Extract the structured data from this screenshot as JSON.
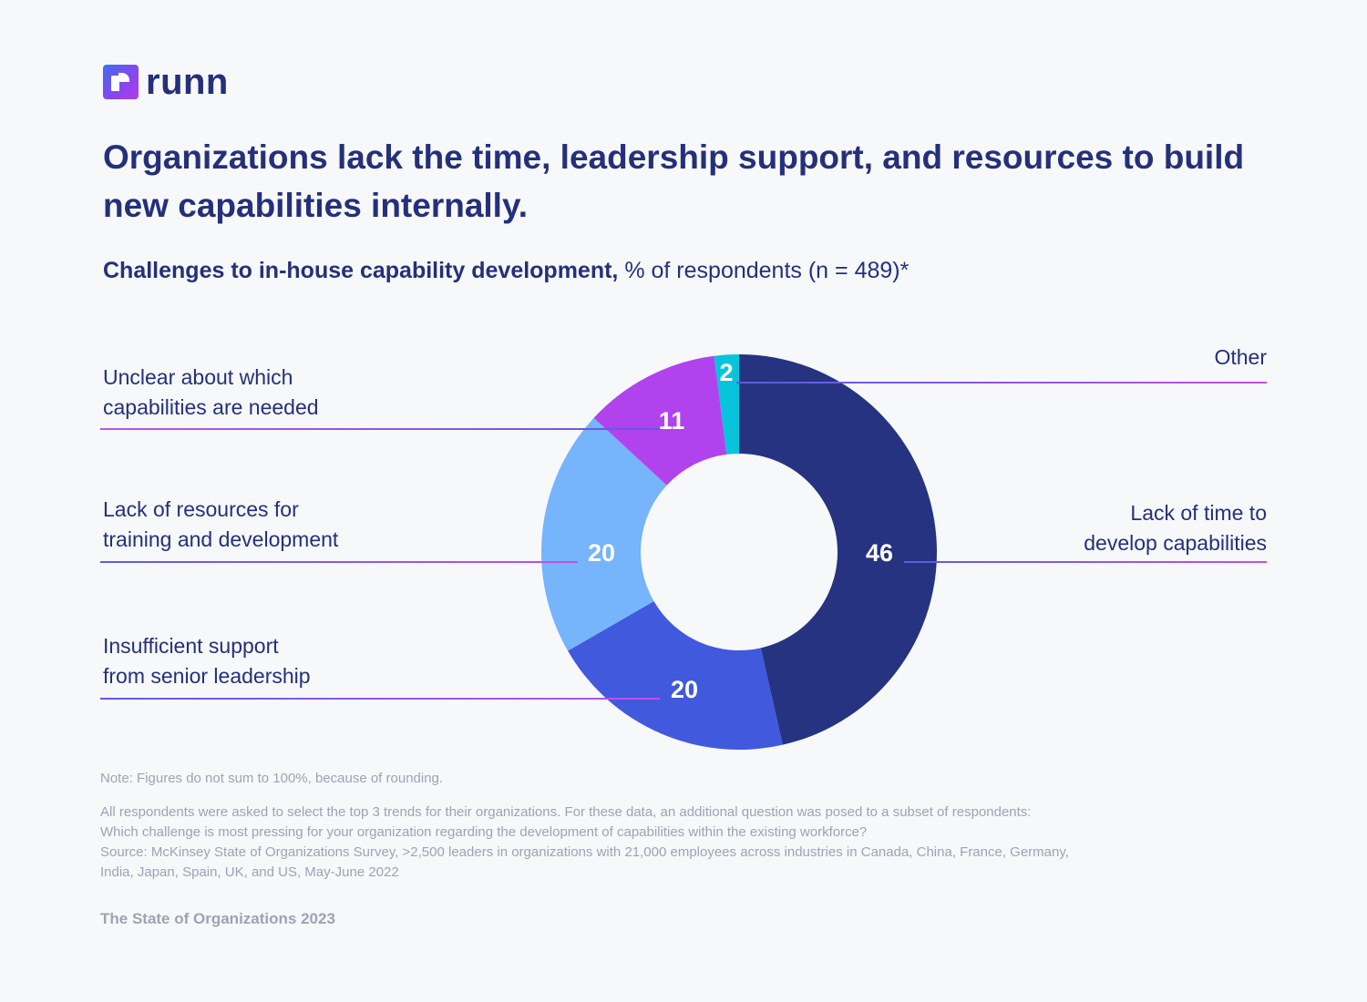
{
  "brand": {
    "name": "runn",
    "icon": "runn-logo-icon"
  },
  "title": "Organizations lack the time, leadership support, and resources to build new capabilities internally.",
  "subtitle": {
    "bold": "Challenges to in-house capability development,",
    "regular": " % of respondents (n = 489)*"
  },
  "chart_data": {
    "type": "pie",
    "variant": "donut",
    "title": "Challenges to in-house capability development, % of respondents (n = 489)*",
    "unit": "%",
    "start": "12 o'clock, clockwise",
    "slices": [
      {
        "label": "Lack of time to develop capabilities",
        "value": 46,
        "color": "#263381",
        "label_side": "right"
      },
      {
        "label": "Insufficient support from senior leadership",
        "value": 20,
        "color": "#4159dd",
        "label_side": "left"
      },
      {
        "label": "Lack of resources for training and development",
        "value": 20,
        "color": "#76b4fb",
        "label_side": "left"
      },
      {
        "label": "Unclear about which capabilities are needed",
        "value": 11,
        "color": "#b043ee",
        "label_side": "left"
      },
      {
        "label": "Other",
        "value": 2,
        "color": "#08c3dc",
        "label_side": "right"
      }
    ],
    "labels_display": [
      {
        "line1": "Lack of time to",
        "line2": "develop capabilities"
      },
      {
        "line1": "Insufficient support",
        "line2": "from senior leadership"
      },
      {
        "line1": "Lack of resources for",
        "line2": "training and development"
      },
      {
        "line1": "Unclear about which",
        "line2": "capabilities are needed"
      },
      {
        "line1": "Other",
        "line2": ""
      }
    ],
    "leader_gradient": [
      "#5b5ce6",
      "#c44fe8"
    ]
  },
  "notes": {
    "rounding": "Note: Figures do not sum to 100%, because of rounding.",
    "lines": [
      "All respondents were asked to select the top 3 trends for their organizations. For these data, an additional question was posed to a subset of respondents:",
      "Which challenge is most pressing for your organization regarding the development of capabilities within the existing workforce?",
      "Source: McKinsey State of Organizations Survey, >2,500 leaders in organizations with 21,000 employees across industries in Canada, China, France, Germany,",
      "India, Japan, Spain, UK, and US, May-June 2022"
    ]
  },
  "footer": "The State of Organizations 2023"
}
